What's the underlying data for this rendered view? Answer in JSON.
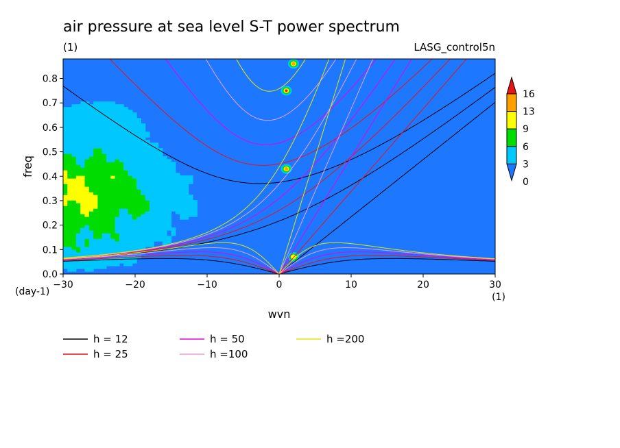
{
  "title": "air pressure at sea level S-T power spectrum",
  "subtitle_left": "(1)",
  "subtitle_right": "LASG_control5n",
  "chart_data": {
    "type": "heatmap",
    "title": "air pressure at sea level S-T power spectrum",
    "xlabel": "wvn",
    "ylabel": "freq",
    "x_unit": "(1)",
    "y_unit": "(day-1)",
    "xlim": [
      -30,
      30
    ],
    "ylim": [
      0,
      0.88
    ],
    "xticks": [
      -30,
      -20,
      -10,
      0,
      10,
      20,
      30
    ],
    "yticks": [
      0.0,
      0.1,
      0.2,
      0.3,
      0.4,
      0.5,
      0.6,
      0.7,
      0.8
    ],
    "grid": false,
    "colorbar": {
      "levels": [
        0,
        3,
        6,
        9,
        13,
        16
      ],
      "colors": [
        "#1e78ff",
        "#00c8ff",
        "#00dc00",
        "#ffff00",
        "#ffa000",
        "#e61414"
      ],
      "extend": "both"
    },
    "field_description": {
      "background_level": "0-3",
      "high_power_region": "westward wavenumbers -30 to -12, frequency 0.05 to 0.55 day-1",
      "peaks": [
        {
          "wvn": 1,
          "freq": 0.75,
          "level": "16+"
        },
        {
          "wvn": 2,
          "freq": 0.86,
          "level": "6-13"
        },
        {
          "wvn": 1,
          "freq": 0.43,
          "level": "6-13"
        },
        {
          "wvn": 2,
          "freq": 0.07,
          "level": "6-9"
        }
      ]
    },
    "series": [
      {
        "name": "h = 12",
        "color": "#000000"
      },
      {
        "name": "h = 25",
        "color": "#e61414"
      },
      {
        "name": "h = 50",
        "color": "#e600e6"
      },
      {
        "name": "h =100",
        "color": "#e6a0e6"
      },
      {
        "name": "h =200",
        "color": "#e6e600"
      }
    ]
  }
}
